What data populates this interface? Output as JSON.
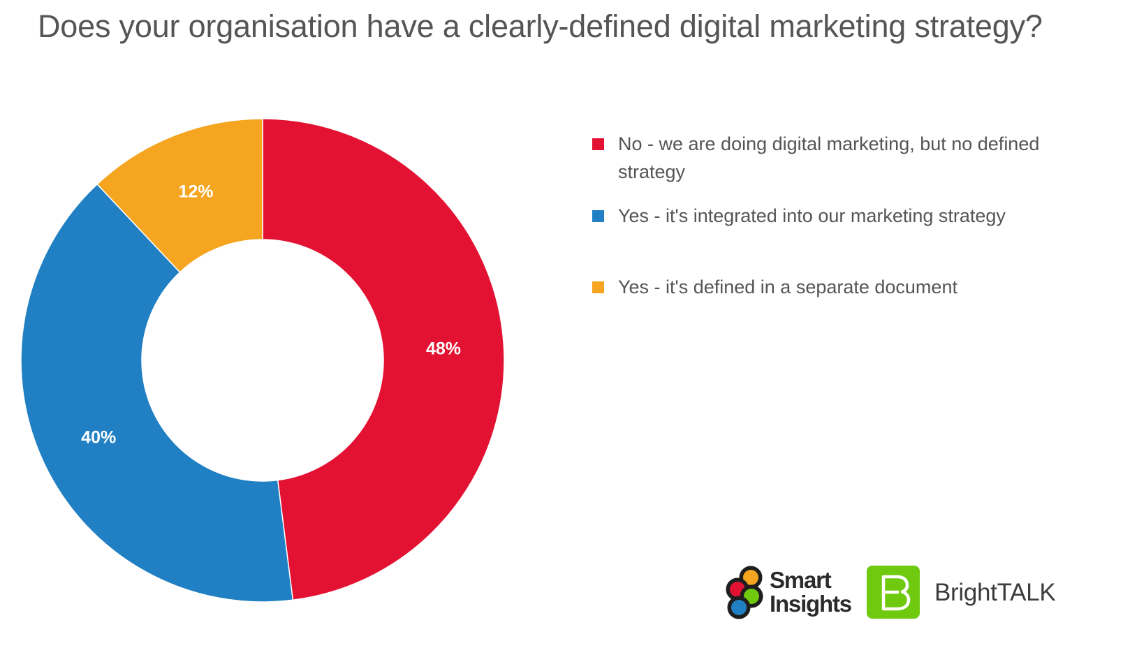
{
  "chart_data": {
    "type": "pie",
    "donut": true,
    "title": "Does your organisation have a clearly-defined digital marketing strategy?",
    "categories": [
      "No - we are doing digital marketing, but no defined strategy",
      "Yes - it's integrated into our marketing strategy",
      "Yes - it's defined in a separate document"
    ],
    "values": [
      48,
      40,
      12
    ],
    "data_labels": [
      "48%",
      "40%",
      "12%"
    ],
    "colors": [
      "#e31232",
      "#2180c3",
      "#f5a520"
    ],
    "legend_position": "right",
    "start_angle": "top, clockwise"
  },
  "logos": {
    "smart_insights": {
      "line1": "Smart",
      "line2": "Insights",
      "colors": [
        "#f5a520",
        "#e31232",
        "#6fc90f",
        "#2180c3"
      ]
    },
    "brighttalk": {
      "letter": "B",
      "name": "BrightTALK",
      "color": "#6fc90f"
    }
  }
}
